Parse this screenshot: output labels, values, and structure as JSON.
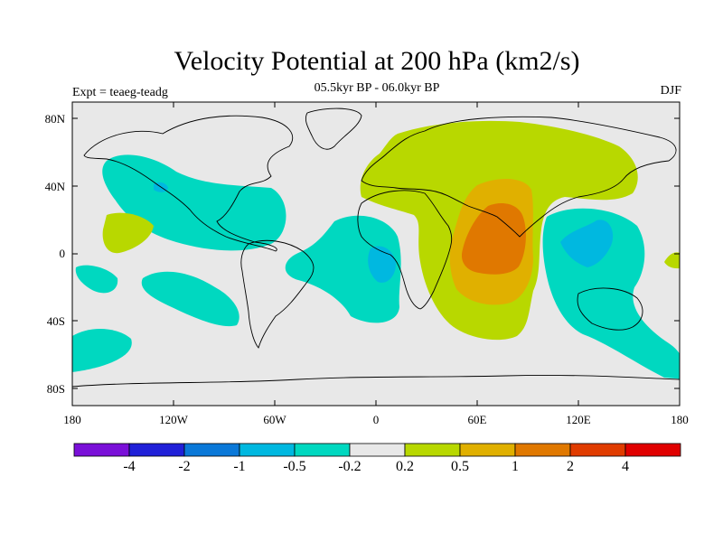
{
  "title": "Velocity Potential at 200 hPa (km2/s)",
  "subtitle": "05.5kyr BP - 06.0kyr BP",
  "experiment_label": "Expt = teaeg-teadg",
  "season_label": "DJF",
  "map": {
    "projection": "cylindrical equidistant",
    "lon_range": [
      -180,
      180
    ],
    "lat_range": [
      -90,
      90
    ],
    "lat_ticks": [
      "80N",
      "40N",
      "0",
      "40S",
      "80S"
    ],
    "lon_ticks": [
      "180",
      "120W",
      "60W",
      "0",
      "60E",
      "120E",
      "180"
    ],
    "background_color": "#e8e8e8",
    "coastline_color": "#000000"
  },
  "colorbar": {
    "colors": [
      "#7a10d8",
      "#2020d8",
      "#0a78d8",
      "#00b8e0",
      "#00d8c0",
      "#e8e8e8",
      "#b8d800",
      "#e0b000",
      "#e07800",
      "#e03c00",
      "#e00000"
    ],
    "labels": [
      "-4",
      "-2",
      "-1",
      "-0.5",
      "-0.2",
      "0.2",
      "0.5",
      "1",
      "2",
      "4"
    ]
  }
}
